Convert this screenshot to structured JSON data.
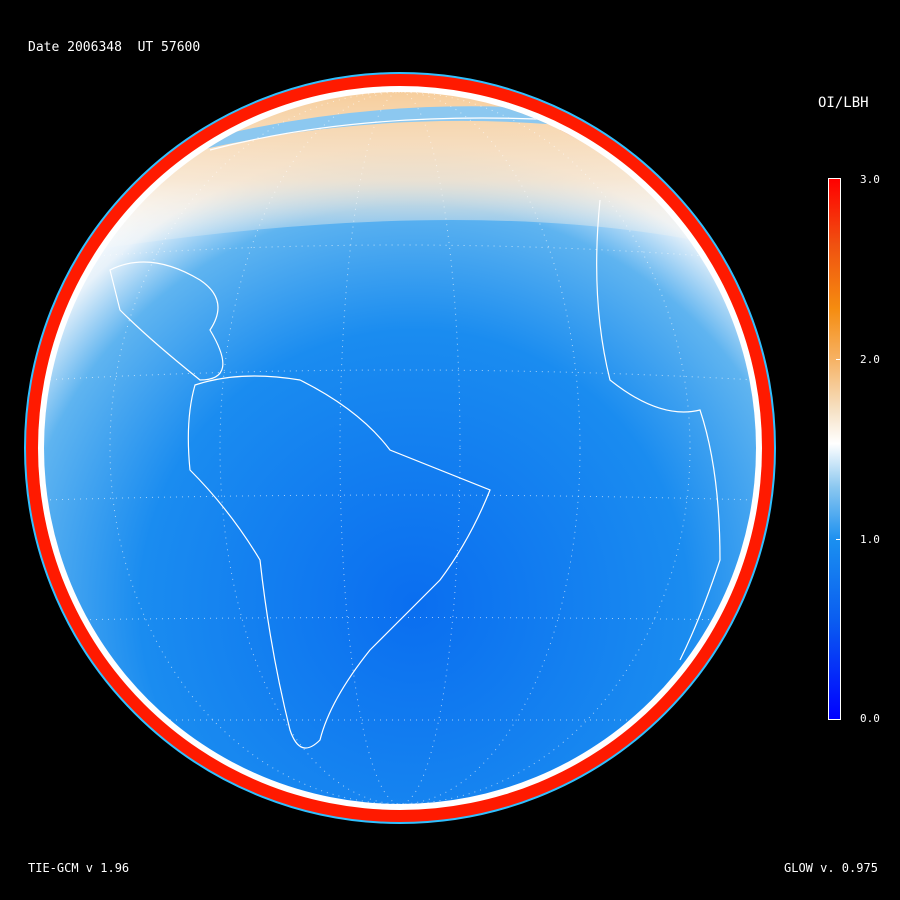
{
  "header": {
    "date_label": "Date 2006348  UT 57600"
  },
  "colorbar": {
    "title": "OI/LBH",
    "ticks": [
      "0.0",
      "1.0",
      "2.0",
      "3.0"
    ],
    "range": [
      0.0,
      3.0
    ],
    "colors": {
      "low": "#0000ff",
      "mid": "#ffffff",
      "high": "#ff0000"
    }
  },
  "footer": {
    "left": "TIE-GCM v 1.96",
    "right": "GLOW v. 0.975"
  }
}
